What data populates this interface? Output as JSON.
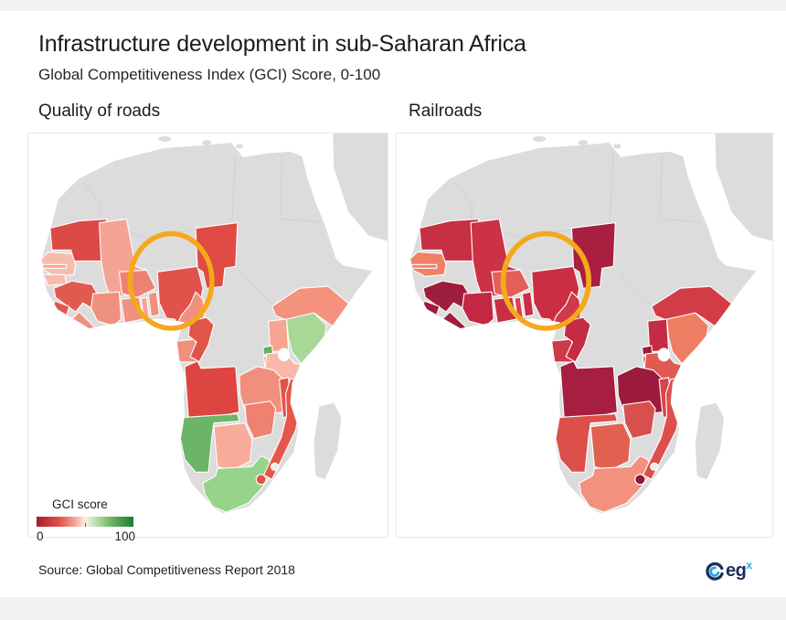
{
  "header": {
    "title": "Infrastructure development in sub-Saharan Africa",
    "subtitle": "Global Competitiveness Index (GCI) Score, 0-100"
  },
  "legend": {
    "title": "GCI score",
    "min": "0",
    "max": "100",
    "gradient": [
      "#A81A2B 0%",
      "#E2574E 25%",
      "#F6B4A3 42%",
      "#FBEFEA 50%",
      "#CBE7BF 58%",
      "#74BA68 75%",
      "#1E7A33 100%"
    ]
  },
  "footer": {
    "source": "Source: Global Competitiveness Report 2018",
    "logo_text": "eg",
    "logo_sup": "x"
  },
  "brand": {
    "navy": "#1C2E60",
    "cyan": "#2AA9E0"
  },
  "chart_data": {
    "type": "heatmap",
    "subtype": "choropleth-map",
    "title": "Infrastructure development in sub-Saharan Africa",
    "scale": {
      "label": "GCI score",
      "min": 0,
      "max": 100,
      "low_color": "#A81A2B",
      "mid_color": "#FBEFEA",
      "high_color": "#1E7A33"
    },
    "no_data_color": "#DCDCDC",
    "highlight": {
      "target": "Nigeria",
      "shape": "ellipse",
      "color": "#F5A81C"
    },
    "maps": [
      {
        "title": "Quality of roads",
        "countries": {
          "mauritania": "#DD4944",
          "mali": "#F5A493",
          "senegal": "#F8BCAE",
          "gambia": "#F5A493",
          "guinea_bissau": "#F8BCAE",
          "guinea": "#E15A50",
          "sierra_leone": "#E2574E",
          "liberia": "#F0907E",
          "cote_divoire": "#F0907E",
          "burkina_faso": "#EE8271",
          "ghana": "#F0907E",
          "togo": "#F5A493",
          "benin": "#F0907E",
          "nigeria": "#E1534A",
          "chad": "#E04B43",
          "cameroon": "#F0907E",
          "gabon": "#F0907E",
          "congo": "#E1544A",
          "ethiopia": "#F4927E",
          "uganda": "#F5A592",
          "kenya": "#A8D796",
          "rwanda": "#67B161",
          "burundi": "#F0907E",
          "tanzania": "#F8B7A8",
          "angola": "#DE4540",
          "zambia": "#F0907C",
          "malawi": "#E1544A",
          "mozambique": "#E4584B",
          "zimbabwe": "#EF8170",
          "botswana": "#F8AB9A",
          "namibia": "#6CB566",
          "south_africa": "#97D38A",
          "lesotho": "#E1544A",
          "swaziland": "#ECECEC"
        }
      },
      {
        "title": "Railroads",
        "countries": {
          "mauritania": "#C72F43",
          "mali": "#CC3144",
          "senegal": "#EF8266",
          "gambia": "#EF8266",
          "guinea": "#9E1D3D",
          "sierra_leone": "#9E1D3D",
          "liberia": "#A01E3E",
          "cote_divoire": "#C32742",
          "burkina_faso": "#E45F55",
          "ghana": "#C82F44",
          "togo": "#D8404D",
          "benin": "#C82F44",
          "nigeria": "#CB2E43",
          "chad": "#A81F3F",
          "cameroon": "#CF3949",
          "gabon": "#CF3A48",
          "congo": "#C52C43",
          "ethiopia": "#D23C47",
          "uganda": "#C52C43",
          "kenya": "#EF7D62",
          "rwanda": "#9E1D3D",
          "burundi": "#C52C43",
          "tanzania": "#E05A52",
          "angola": "#A61F40",
          "zambia": "#9C1B3C",
          "malawi": "#D8444C",
          "mozambique": "#DD4F4D",
          "zimbabwe": "#D8504E",
          "botswana": "#E2604F",
          "namibia": "#DD4F4A",
          "south_africa": "#F4907E",
          "lesotho": "#8F1838",
          "swaziland": "#ECECEC"
        }
      }
    ]
  }
}
